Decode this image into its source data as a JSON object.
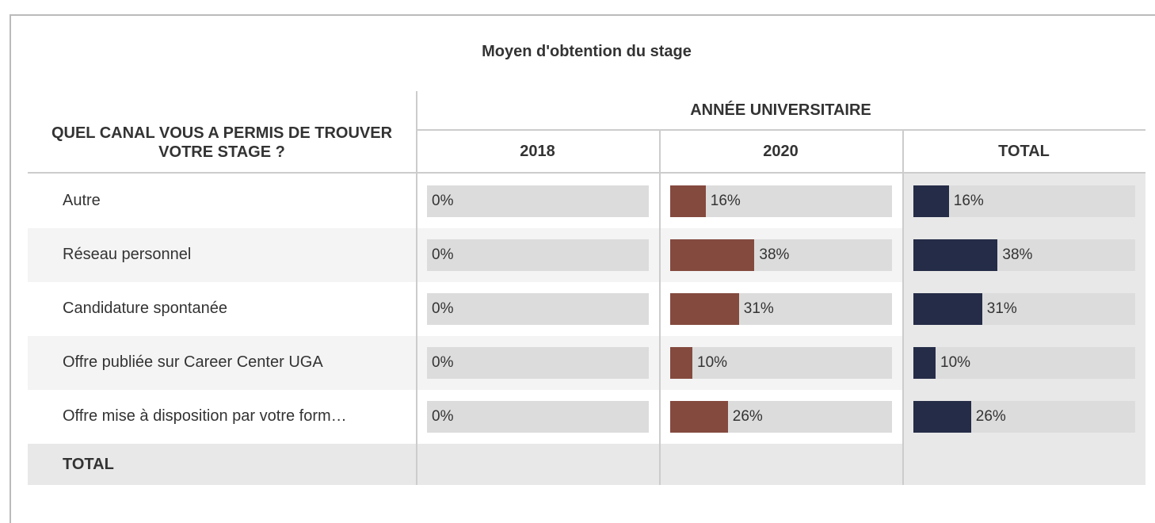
{
  "table": {
    "title": "Moyen d'obtention du stage",
    "row_header": "QUEL CANAL VOUS A PERMIS DE TROUVER VOTRE STAGE ?",
    "column_group": "ANNÉE UNIVERSITAIRE",
    "columns": [
      "2018",
      "2020",
      "TOTAL"
    ],
    "bar_colors": [
      "#844a3e",
      "#844a3e",
      "#252c47"
    ],
    "xlim": [
      0,
      100
    ],
    "rows": [
      {
        "label": "Autre",
        "values": [
          0,
          16,
          16
        ],
        "value_labels": [
          "0%",
          "16%",
          "16%"
        ]
      },
      {
        "label": "Réseau personnel",
        "values": [
          0,
          38,
          38
        ],
        "value_labels": [
          "0%",
          "38%",
          "38%"
        ]
      },
      {
        "label": "Candidature spontanée",
        "values": [
          0,
          31,
          31
        ],
        "value_labels": [
          "0%",
          "31%",
          "31%"
        ]
      },
      {
        "label": "Offre publiée sur Career Center UGA",
        "values": [
          0,
          10,
          10
        ],
        "value_labels": [
          "0%",
          "10%",
          "10%"
        ]
      },
      {
        "label": "Offre mise à disposition par votre form…",
        "values": [
          0,
          26,
          26
        ],
        "value_labels": [
          "0%",
          "26%",
          "26%"
        ]
      }
    ],
    "total_label": "TOTAL"
  }
}
